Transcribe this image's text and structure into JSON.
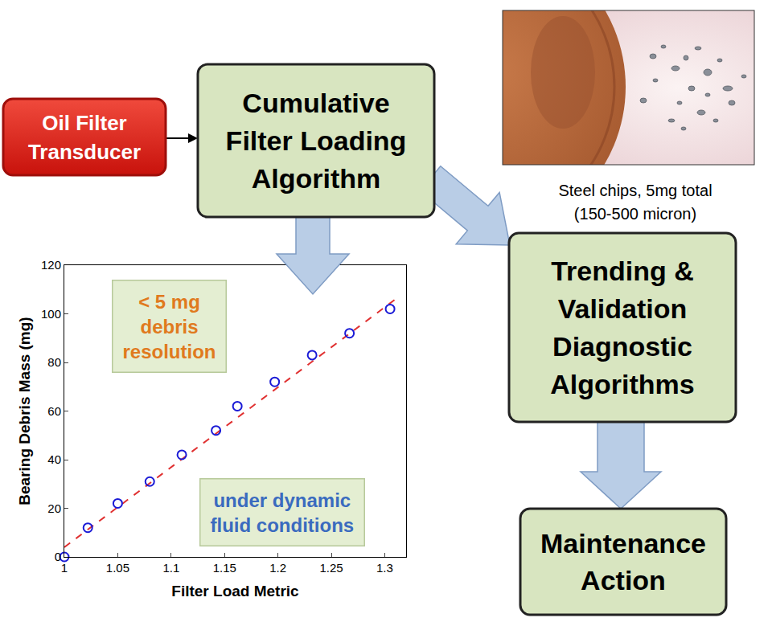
{
  "nodes": [
    {
      "id": "transducer",
      "label": [
        "Oil Filter",
        "Transducer"
      ]
    },
    {
      "id": "loading",
      "label": [
        "Cumulative",
        "Filter Loading",
        "Algorithm"
      ]
    },
    {
      "id": "trending",
      "label": [
        "Trending &",
        "Validation",
        "Diagnostic",
        "Algorithms"
      ]
    },
    {
      "id": "maintenance",
      "label": [
        "Maintenance",
        "Action"
      ]
    }
  ],
  "photo": {
    "caption": [
      "Steel chips, 5mg total",
      "(150-500 micron)"
    ]
  },
  "chart_data": {
    "type": "scatter",
    "x_label": "Filter Load Metric",
    "y_label": "Bearing Debris Mass (mg)",
    "xlim": [
      1,
      1.32
    ],
    "xticks": [
      1,
      1.05,
      1.1,
      1.15,
      1.2,
      1.25,
      1.3
    ],
    "ylim": [
      0,
      120
    ],
    "yticks": [
      0,
      20,
      40,
      60,
      80,
      100,
      120
    ],
    "grid": false,
    "series": [
      {
        "type": "scatter",
        "marker": "open circle",
        "color": "#1a1ad6",
        "x": [
          1,
          1.022,
          1.05,
          1.08,
          1.11,
          1.142,
          1.162,
          1.197,
          1.232,
          1.267,
          1.305
        ],
        "values": [
          0,
          12,
          22,
          31,
          42,
          52,
          62,
          72,
          83,
          92,
          102
        ]
      },
      {
        "type": "line",
        "line_style": "dashed",
        "color": "#e03030",
        "x": [
          1,
          1.31
        ],
        "values": [
          4,
          106
        ]
      }
    ],
    "annotations": [
      {
        "text": [
          "< 5 mg",
          "debris",
          "resolution"
        ],
        "color": "#e07a1e"
      },
      {
        "text": [
          "under dynamic",
          "fluid conditions"
        ],
        "color": "#3a6bbf"
      }
    ]
  }
}
